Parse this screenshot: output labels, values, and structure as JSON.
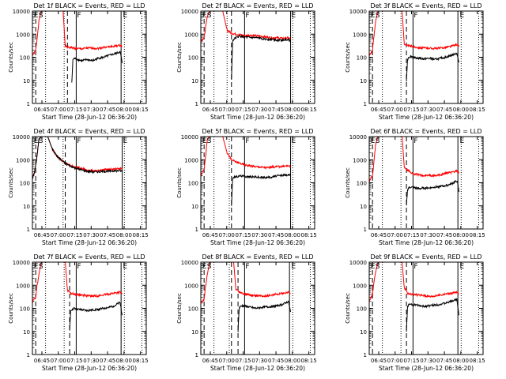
{
  "figure": {
    "shared_xlabel": "Start Time (28-Jun-12 06:36:20)",
    "shared_ylabel": "Counts/sec",
    "x_ticks": [
      "06:45",
      "07:00",
      "07:15",
      "07:30",
      "07:45",
      "08:00",
      "08:15"
    ],
    "y_ticks": [
      "1",
      "10",
      "100",
      "1000",
      "10000"
    ],
    "marker_labels": {
      "E": "E",
      "S": "S",
      "F": "F"
    }
  },
  "chart_data": [
    {
      "type": "line",
      "title": "Det 1f BLACK = Events, RED = LLD",
      "xlabel": "Start Time (28-Jun-12 06:36:20)",
      "ylabel": "Counts/sec",
      "x_unit": "minutes after 06:36:20",
      "xlim": [
        0,
        104
      ],
      "ylim": [
        1,
        10000
      ],
      "yscale": "log",
      "series": [
        {
          "color": "#ff0000",
          "x": [
            0,
            3,
            4,
            6,
            8,
            10,
            28,
            30,
            32,
            35,
            40,
            45,
            50,
            55,
            60,
            65,
            70,
            75,
            80,
            82
          ],
          "y": [
            120,
            200,
            500,
            4000,
            10000,
            10000,
            10000,
            300,
            270,
            260,
            240,
            230,
            250,
            250,
            240,
            270,
            280,
            300,
            330,
            280
          ]
        },
        {
          "color": "#000000",
          "x": [
            36,
            37,
            38,
            40,
            45,
            50,
            55,
            60,
            65,
            70,
            75,
            80,
            81,
            82
          ],
          "y": [
            8,
            80,
            90,
            85,
            70,
            80,
            70,
            90,
            100,
            120,
            140,
            170,
            110,
            55
          ]
        }
      ],
      "vlines_dashed": [
        3,
        32
      ],
      "vlines_dotted": [
        12,
        29,
        84,
        100
      ],
      "vlines_solid": [
        40,
        81
      ],
      "markers": {
        "ES": 2,
        "F": 40,
        "E": 82
      }
    },
    {
      "type": "line",
      "title": "Det 2f BLACK = Events, RED = LLD",
      "xlabel": "Start Time (28-Jun-12 06:36:20)",
      "ylabel": "Counts/sec",
      "x_unit": "minutes after 06:36:20",
      "xlim": [
        0,
        104
      ],
      "ylim": [
        1,
        10000
      ],
      "yscale": "log",
      "series": [
        {
          "color": "#ff0000",
          "x": [
            0,
            3,
            4,
            6,
            8,
            10,
            20,
            24,
            28,
            32,
            35,
            38,
            40,
            45,
            50,
            55,
            60,
            65,
            70,
            75,
            80,
            82
          ],
          "y": [
            500,
            700,
            1500,
            6000,
            10000,
            10000,
            10000,
            1500,
            1100,
            1000,
            950,
            900,
            850,
            900,
            850,
            800,
            750,
            700,
            700,
            650,
            700,
            600
          ]
        },
        {
          "color": "#000000",
          "x": [
            28,
            29,
            30,
            32,
            35,
            40,
            45,
            50,
            55,
            60,
            65,
            70,
            75,
            80,
            82
          ],
          "y": [
            10,
            500,
            600,
            700,
            800,
            750,
            700,
            700,
            650,
            600,
            600,
            550,
            550,
            600,
            500
          ]
        }
      ],
      "vlines_dashed": [
        3,
        28
      ],
      "vlines_dotted": [
        12,
        24,
        84,
        100
      ],
      "vlines_solid": [
        40,
        82
      ],
      "markers": {
        "ES": 2,
        "F": 40,
        "E": 82
      }
    },
    {
      "type": "line",
      "title": "Det 3f BLACK = Events, RED = LLD",
      "xlabel": "Start Time (28-Jun-12 06:36:20)",
      "ylabel": "Counts/sec",
      "x_unit": "minutes after 06:36:20",
      "xlim": [
        0,
        104
      ],
      "ylim": [
        1,
        10000
      ],
      "yscale": "log",
      "series": [
        {
          "color": "#ff0000",
          "x": [
            0,
            3,
            4,
            6,
            8,
            10,
            30,
            32,
            34,
            38,
            42,
            46,
            50,
            55,
            60,
            65,
            70,
            75,
            80,
            82
          ],
          "y": [
            120,
            200,
            600,
            4000,
            10000,
            10000,
            10000,
            400,
            320,
            300,
            280,
            260,
            250,
            250,
            240,
            250,
            270,
            300,
            360,
            290
          ]
        },
        {
          "color": "#000000",
          "x": [
            34,
            35,
            36,
            38,
            42,
            46,
            50,
            55,
            60,
            65,
            70,
            75,
            80,
            81,
            82
          ],
          "y": [
            10,
            80,
            100,
            110,
            95,
            90,
            85,
            90,
            80,
            90,
            100,
            120,
            150,
            90,
            60
          ]
        }
      ],
      "vlines_dashed": [
        3,
        34
      ],
      "vlines_dotted": [
        12,
        29,
        84,
        100
      ],
      "vlines_solid": [
        40,
        81
      ],
      "markers": {
        "ES": 2,
        "F": 40,
        "E": 82
      }
    },
    {
      "type": "line",
      "title": "Det 4f BLACK = Events, RED = LLD",
      "xlabel": "Start Time (28-Jun-12 06:36:20)",
      "ylabel": "Counts/sec",
      "x_unit": "minutes after 06:36:20",
      "xlim": [
        0,
        104
      ],
      "ylim": [
        1,
        10000
      ],
      "yscale": "log",
      "series": [
        {
          "color": "#ff0000",
          "x": [
            0,
            2,
            4,
            6,
            8,
            10,
            14,
            18,
            22,
            26,
            30,
            34,
            38,
            42,
            46,
            50,
            55,
            60,
            65,
            70,
            75,
            80,
            82
          ],
          "y": [
            150,
            300,
            1200,
            8000,
            10000,
            10000,
            10000,
            3000,
            1500,
            1000,
            700,
            600,
            500,
            450,
            400,
            350,
            330,
            340,
            360,
            380,
            400,
            420,
            400
          ]
        },
        {
          "color": "#000000",
          "x": [
            0,
            2,
            4,
            6,
            8,
            10,
            14,
            18,
            22,
            26,
            30,
            34,
            38,
            42,
            46,
            50,
            55,
            60,
            65,
            70,
            75,
            80,
            82
          ],
          "y": [
            150,
            300,
            1200,
            8000,
            10000,
            10000,
            10000,
            3000,
            1500,
            1000,
            700,
            550,
            450,
            400,
            350,
            320,
            300,
            300,
            310,
            320,
            330,
            340,
            320
          ]
        }
      ],
      "vlines_dashed": [
        3,
        30
      ],
      "vlines_dotted": [
        12,
        28,
        84,
        100
      ],
      "vlines_solid": [
        40,
        82
      ],
      "markers": {
        "ES": 2,
        "F": 40,
        "E": 82
      }
    },
    {
      "type": "line",
      "title": "Det 5f BLACK = Events, RED = LLD",
      "xlabel": "Start Time (28-Jun-12 06:36:20)",
      "ylabel": "Counts/sec",
      "x_unit": "minutes after 06:36:20",
      "xlim": [
        0,
        104
      ],
      "ylim": [
        1,
        10000
      ],
      "yscale": "log",
      "series": [
        {
          "color": "#ff0000",
          "x": [
            0,
            3,
            4,
            6,
            8,
            10,
            20,
            24,
            28,
            32,
            36,
            40,
            45,
            50,
            55,
            60,
            65,
            70,
            75,
            80,
            82
          ],
          "y": [
            200,
            400,
            1000,
            8000,
            10000,
            10000,
            10000,
            2000,
            1000,
            800,
            700,
            600,
            550,
            500,
            480,
            450,
            480,
            500,
            520,
            550,
            480
          ]
        },
        {
          "color": "#000000",
          "x": [
            28,
            29,
            30,
            32,
            36,
            40,
            45,
            50,
            55,
            60,
            65,
            70,
            75,
            80,
            82
          ],
          "y": [
            10,
            150,
            170,
            180,
            200,
            190,
            180,
            180,
            170,
            170,
            180,
            200,
            210,
            220,
            200
          ]
        }
      ],
      "vlines_dashed": [
        3,
        28
      ],
      "vlines_dotted": [
        12,
        26,
        84,
        100
      ],
      "vlines_solid": [
        40,
        82
      ],
      "markers": {
        "ES": 2,
        "F": 40,
        "E": 82
      }
    },
    {
      "type": "line",
      "title": "Det 6f BLACK = Events, RED = LLD",
      "xlabel": "Start Time (28-Jun-12 06:36:20)",
      "ylabel": "Counts/sec",
      "x_unit": "minutes after 06:36:20",
      "xlim": [
        0,
        104
      ],
      "ylim": [
        1,
        10000
      ],
      "yscale": "log",
      "series": [
        {
          "color": "#ff0000",
          "x": [
            0,
            3,
            4,
            6,
            8,
            10,
            30,
            32,
            35,
            40,
            45,
            50,
            55,
            60,
            65,
            70,
            75,
            80,
            82
          ],
          "y": [
            120,
            200,
            600,
            5000,
            10000,
            10000,
            10000,
            500,
            350,
            250,
            220,
            200,
            210,
            200,
            220,
            260,
            280,
            320,
            260
          ]
        },
        {
          "color": "#000000",
          "x": [
            34,
            35,
            36,
            38,
            42,
            46,
            50,
            55,
            60,
            65,
            70,
            75,
            80,
            81,
            82
          ],
          "y": [
            10,
            50,
            60,
            65,
            60,
            55,
            60,
            60,
            65,
            70,
            75,
            90,
            120,
            80,
            40
          ]
        }
      ],
      "vlines_dashed": [
        3,
        34
      ],
      "vlines_dotted": [
        12,
        29,
        84,
        100
      ],
      "vlines_solid": [
        40,
        81
      ],
      "markers": {
        "ES": 2,
        "F": 40,
        "E": 82
      }
    },
    {
      "type": "line",
      "title": "Det 7f BLACK = Events, RED = LLD",
      "xlabel": "Start Time (28-Jun-12 06:36:20)",
      "ylabel": "Counts/sec",
      "x_unit": "minutes after 06:36:20",
      "xlim": [
        0,
        104
      ],
      "ylim": [
        1,
        10000
      ],
      "yscale": "log",
      "series": [
        {
          "color": "#ff0000",
          "x": [
            0,
            3,
            4,
            6,
            8,
            10,
            30,
            32,
            35,
            40,
            45,
            50,
            55,
            60,
            65,
            70,
            75,
            80,
            82
          ],
          "y": [
            200,
            300,
            800,
            3000,
            10000,
            10000,
            10000,
            600,
            450,
            400,
            380,
            350,
            340,
            350,
            380,
            420,
            460,
            500,
            420
          ]
        },
        {
          "color": "#000000",
          "x": [
            34,
            35,
            36,
            38,
            42,
            46,
            50,
            55,
            60,
            65,
            70,
            75,
            80,
            81,
            82
          ],
          "y": [
            10,
            80,
            90,
            100,
            90,
            85,
            80,
            85,
            90,
            100,
            110,
            130,
            180,
            100,
            50
          ]
        }
      ],
      "vlines_dashed": [
        3,
        34
      ],
      "vlines_dotted": [
        12,
        29,
        84,
        100
      ],
      "vlines_solid": [
        40,
        81
      ],
      "markers": {
        "ES": 2,
        "F": 40,
        "E": 82
      }
    },
    {
      "type": "line",
      "title": "Det 8f BLACK = Events, RED = LLD",
      "xlabel": "Start Time (28-Jun-12 06:36:20)",
      "ylabel": "Counts/sec",
      "x_unit": "minutes after 06:36:20",
      "xlim": [
        0,
        104
      ],
      "ylim": [
        1,
        10000
      ],
      "yscale": "log",
      "series": [
        {
          "color": "#ff0000",
          "x": [
            0,
            3,
            4,
            6,
            8,
            10,
            30,
            32,
            35,
            40,
            45,
            50,
            55,
            60,
            65,
            70,
            75,
            80,
            82
          ],
          "y": [
            150,
            250,
            700,
            3000,
            10000,
            10000,
            10000,
            700,
            500,
            420,
            380,
            350,
            340,
            350,
            380,
            420,
            450,
            500,
            420
          ]
        },
        {
          "color": "#000000",
          "x": [
            34,
            35,
            36,
            38,
            42,
            46,
            50,
            55,
            60,
            65,
            70,
            75,
            80,
            81,
            82
          ],
          "y": [
            10,
            100,
            120,
            130,
            120,
            110,
            100,
            110,
            115,
            120,
            130,
            150,
            200,
            120,
            70
          ]
        }
      ],
      "vlines_dashed": [
        3,
        28,
        34
      ],
      "vlines_dotted": [
        12,
        26,
        84,
        100
      ],
      "vlines_solid": [
        40,
        81
      ],
      "markers": {
        "ES": 2,
        "F": 40,
        "E": 82
      }
    },
    {
      "type": "line",
      "title": "Det 9f BLACK = Events, RED = LLD",
      "xlabel": "Start Time (28-Jun-12 06:36:20)",
      "ylabel": "Counts/sec",
      "x_unit": "minutes after 06:36:20",
      "xlim": [
        0,
        104
      ],
      "ylim": [
        1,
        10000
      ],
      "yscale": "log",
      "series": [
        {
          "color": "#ff0000",
          "x": [
            0,
            3,
            4,
            6,
            8,
            10,
            30,
            32,
            35,
            40,
            45,
            50,
            55,
            60,
            65,
            70,
            75,
            80,
            82
          ],
          "y": [
            200,
            400,
            1000,
            4000,
            10000,
            10000,
            10000,
            800,
            450,
            400,
            380,
            360,
            330,
            340,
            380,
            420,
            450,
            500,
            400
          ]
        },
        {
          "color": "#000000",
          "x": [
            34,
            35,
            36,
            38,
            42,
            46,
            50,
            55,
            60,
            65,
            70,
            75,
            80,
            81,
            82
          ],
          "y": [
            10,
            120,
            140,
            150,
            140,
            130,
            120,
            130,
            140,
            150,
            170,
            200,
            250,
            120,
            50
          ]
        }
      ],
      "vlines_dashed": [
        3,
        34
      ],
      "vlines_dotted": [
        12,
        29,
        84,
        100
      ],
      "vlines_solid": [
        40,
        81
      ],
      "markers": {
        "ES": 2,
        "F": 40,
        "E": 82
      }
    }
  ]
}
